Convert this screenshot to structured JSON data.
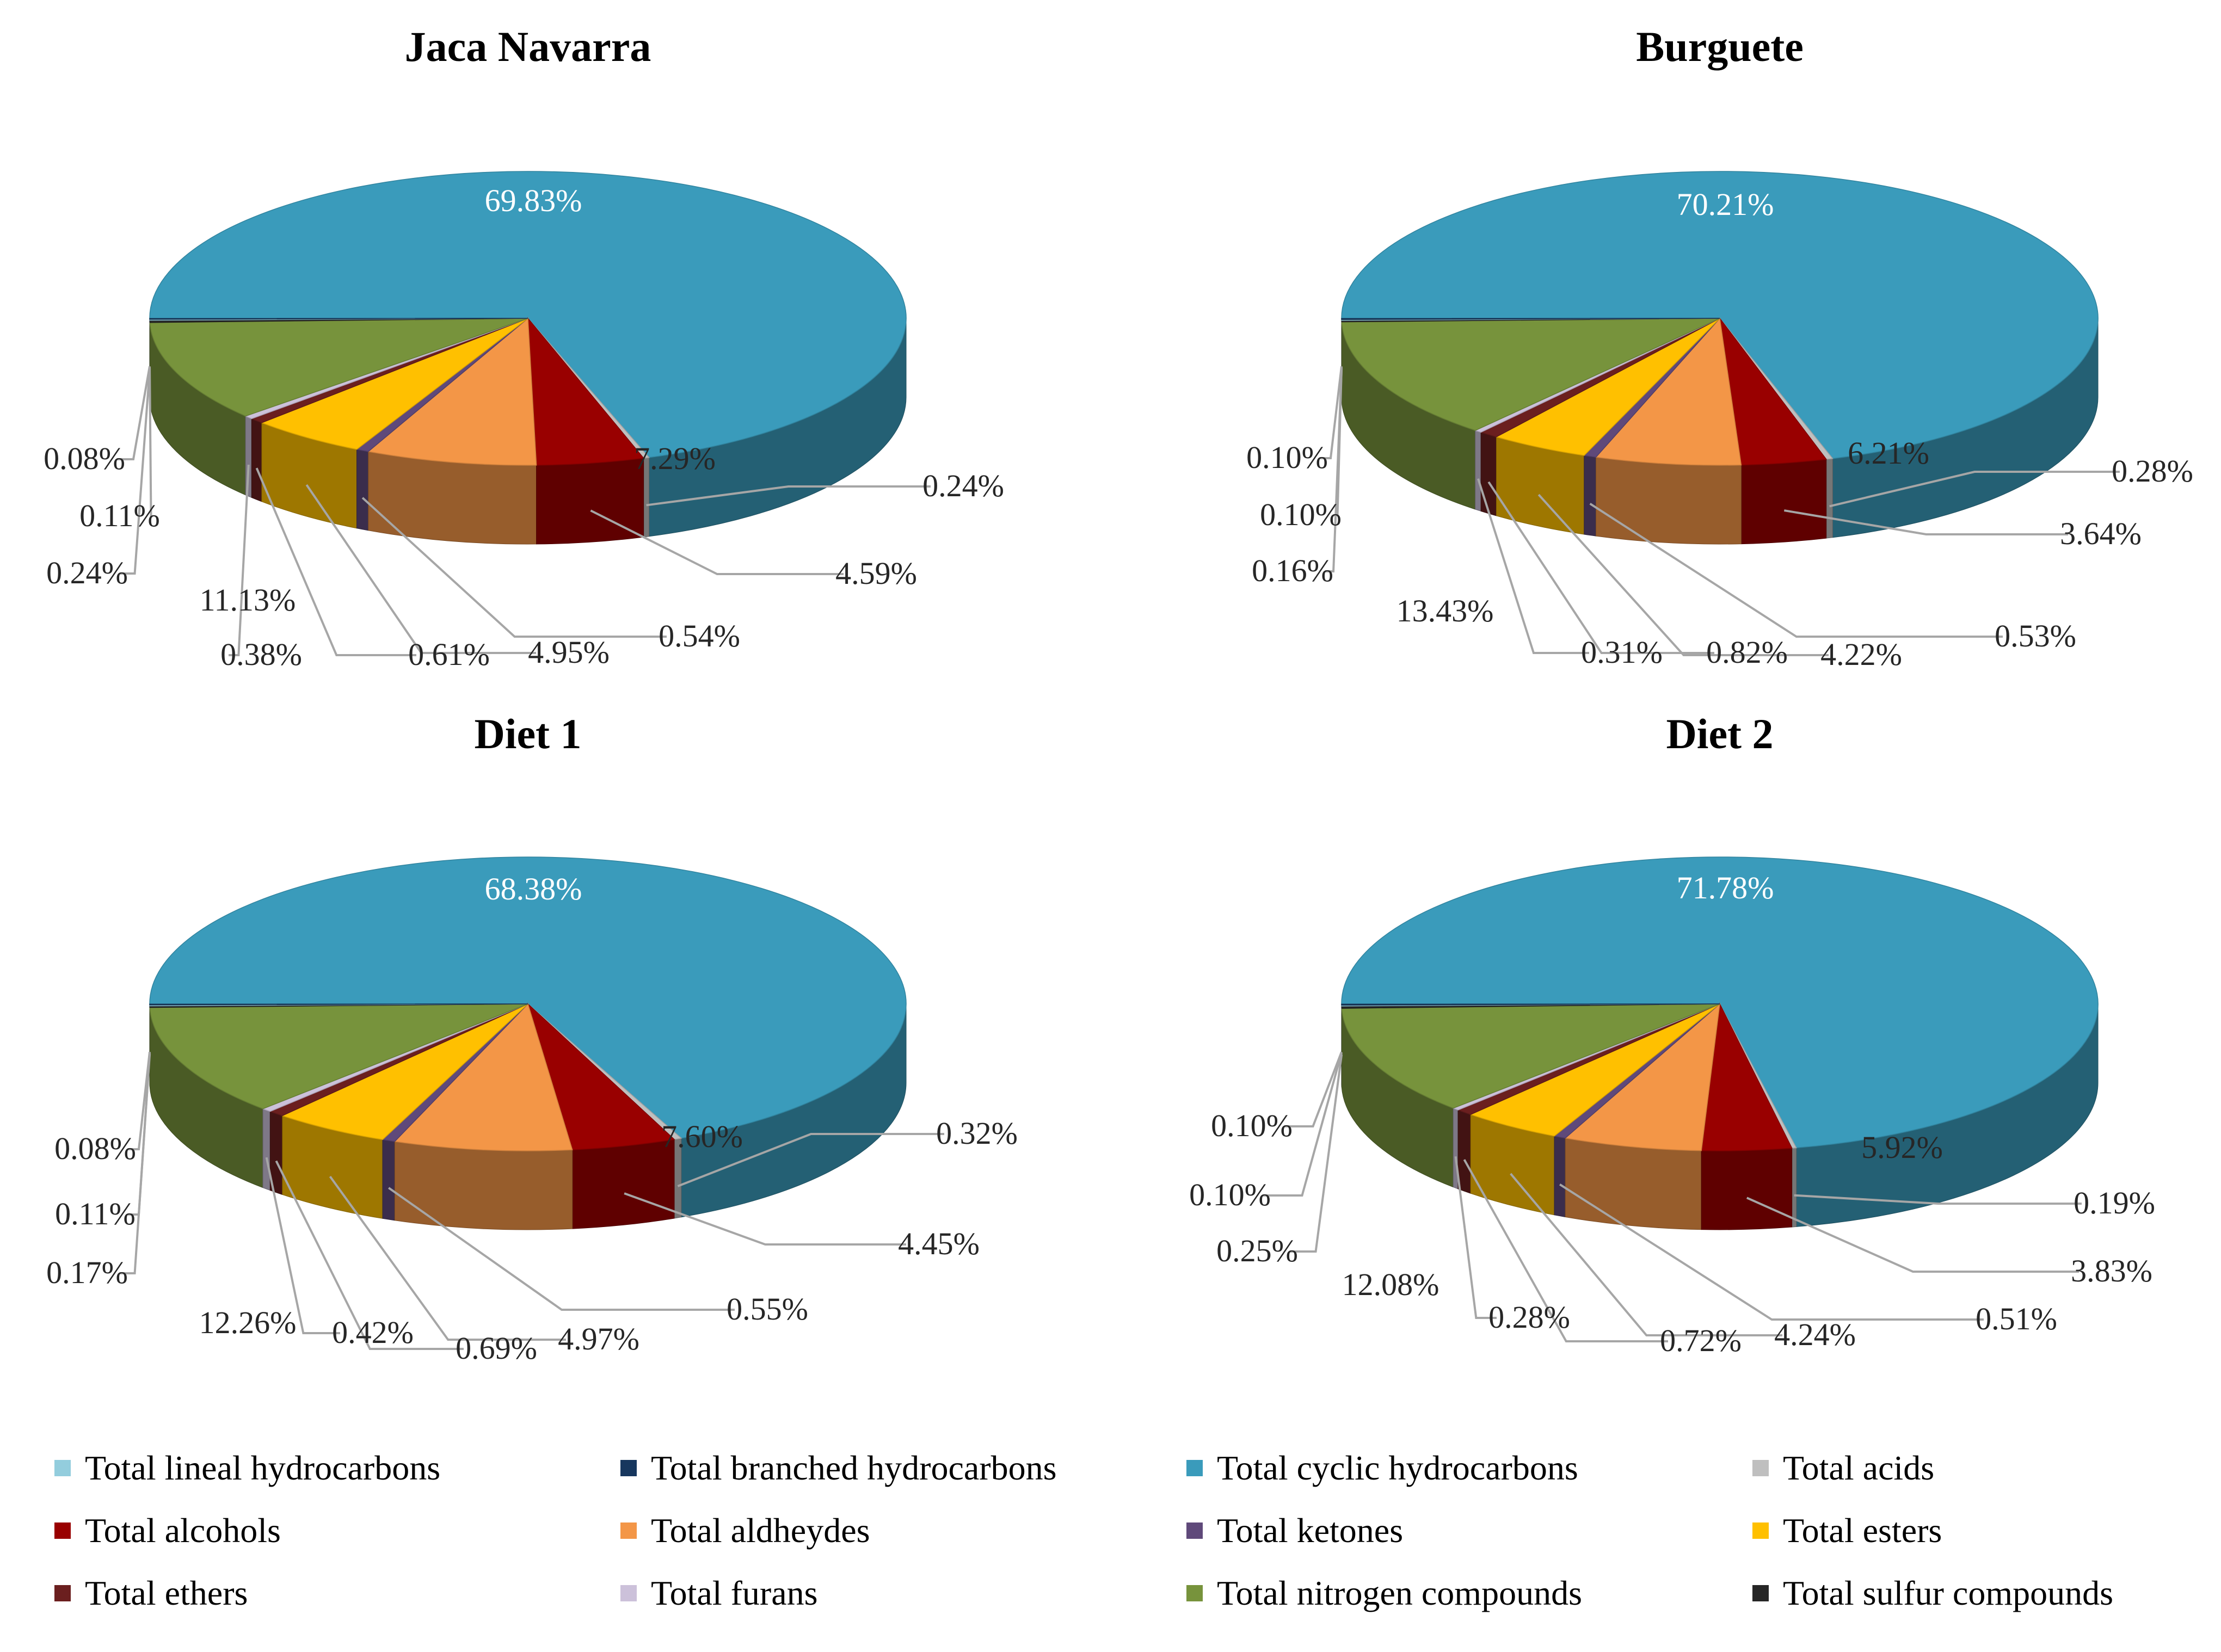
{
  "colors": {
    "Total lineal hydrocarbons": "#93cddd",
    "Total branched hydrocarbons": "#17375e",
    "Total cyclic hydrocarbons": "#3a9bbb",
    "Total acids": "#bfbfbf",
    "Total alcohols": "#990000",
    "Total aldheydes": "#f39647",
    "Total ketones": "#5f497a",
    "Total esters": "#ffc000",
    "Total ethers": "#6b1f1f",
    "Total furans": "#ccc1da",
    "Total nitrogen compounds": "#77933c",
    "Total sulfur compounds": "#262626"
  },
  "chart_data": [
    {
      "type": "pie",
      "title": "Jaca Navarra",
      "slices": [
        {
          "category": "Total cyclic hydrocarbons",
          "value": 69.83,
          "label": "69.83%"
        },
        {
          "category": "Total acids",
          "value": 0.24,
          "label": "0.24%"
        },
        {
          "category": "Total alcohols",
          "value": 4.59,
          "label": "4.59%"
        },
        {
          "category": "Total aldheydes",
          "value": 7.29,
          "label": "7.29%"
        },
        {
          "category": "Total ketones",
          "value": 0.54,
          "label": "0.54%"
        },
        {
          "category": "Total esters",
          "value": 4.95,
          "label": "4.95%"
        },
        {
          "category": "Total ethers",
          "value": 0.61,
          "label": "0.61%"
        },
        {
          "category": "Total furans",
          "value": 0.38,
          "label": "0.38%"
        },
        {
          "category": "Total nitrogen compounds",
          "value": 11.13,
          "label": "11.13%"
        },
        {
          "category": "Total sulfur compounds",
          "value": 0.24,
          "label": "0.24%"
        },
        {
          "category": "Total lineal hydrocarbons",
          "value": 0.11,
          "label": "0.11%"
        },
        {
          "category": "Total branched hydrocarbons",
          "value": 0.08,
          "label": "0.08%"
        }
      ]
    },
    {
      "type": "pie",
      "title": "Burguete",
      "slices": [
        {
          "category": "Total cyclic hydrocarbons",
          "value": 70.21,
          "label": "70.21%"
        },
        {
          "category": "Total acids",
          "value": 0.28,
          "label": "0.28%"
        },
        {
          "category": "Total alcohols",
          "value": 3.64,
          "label": "3.64%"
        },
        {
          "category": "Total aldheydes",
          "value": 6.21,
          "label": "6.21%"
        },
        {
          "category": "Total ketones",
          "value": 0.53,
          "label": "0.53%"
        },
        {
          "category": "Total esters",
          "value": 4.22,
          "label": "4.22%"
        },
        {
          "category": "Total ethers",
          "value": 0.82,
          "label": "0.82%"
        },
        {
          "category": "Total furans",
          "value": 0.31,
          "label": "0.31%"
        },
        {
          "category": "Total nitrogen compounds",
          "value": 13.43,
          "label": "13.43%"
        },
        {
          "category": "Total sulfur compounds",
          "value": 0.16,
          "label": "0.16%"
        },
        {
          "category": "Total lineal hydrocarbons",
          "value": 0.1,
          "label": "0.10%"
        },
        {
          "category": "Total branched hydrocarbons",
          "value": 0.1,
          "label": "0.10%"
        }
      ]
    },
    {
      "type": "pie",
      "title": "Diet 1",
      "slices": [
        {
          "category": "Total cyclic hydrocarbons",
          "value": 68.38,
          "label": "68.38%"
        },
        {
          "category": "Total acids",
          "value": 0.32,
          "label": "0.32%"
        },
        {
          "category": "Total alcohols",
          "value": 4.45,
          "label": "4.45%"
        },
        {
          "category": "Total aldheydes",
          "value": 7.6,
          "label": "7.60%"
        },
        {
          "category": "Total ketones",
          "value": 0.55,
          "label": "0.55%"
        },
        {
          "category": "Total esters",
          "value": 4.97,
          "label": "4.97%"
        },
        {
          "category": "Total ethers",
          "value": 0.69,
          "label": "0.69%"
        },
        {
          "category": "Total furans",
          "value": 0.42,
          "label": "0.42%"
        },
        {
          "category": "Total nitrogen compounds",
          "value": 12.26,
          "label": "12.26%"
        },
        {
          "category": "Total sulfur compounds",
          "value": 0.17,
          "label": "0.17%"
        },
        {
          "category": "Total lineal hydrocarbons",
          "value": 0.11,
          "label": "0.11%"
        },
        {
          "category": "Total branched hydrocarbons",
          "value": 0.08,
          "label": "0.08%"
        }
      ]
    },
    {
      "type": "pie",
      "title": "Diet 2",
      "slices": [
        {
          "category": "Total cyclic hydrocarbons",
          "value": 71.78,
          "label": "71.78%"
        },
        {
          "category": "Total acids",
          "value": 0.19,
          "label": "0.19%"
        },
        {
          "category": "Total alcohols",
          "value": 3.83,
          "label": "3.83%"
        },
        {
          "category": "Total aldheydes",
          "value": 5.92,
          "label": "5.92%"
        },
        {
          "category": "Total ketones",
          "value": 0.51,
          "label": "0.51%"
        },
        {
          "category": "Total esters",
          "value": 4.24,
          "label": "4.24%"
        },
        {
          "category": "Total ethers",
          "value": 0.72,
          "label": "0.72%"
        },
        {
          "category": "Total furans",
          "value": 0.28,
          "label": "0.28%"
        },
        {
          "category": "Total nitrogen compounds",
          "value": 12.08,
          "label": "12.08%"
        },
        {
          "category": "Total sulfur compounds",
          "value": 0.25,
          "label": "0.25%"
        },
        {
          "category": "Total lineal hydrocarbons",
          "value": 0.1,
          "label": "0.10%"
        },
        {
          "category": "Total branched hydrocarbons",
          "value": 0.1,
          "label": "0.10%"
        }
      ]
    }
  ],
  "legend": [
    "Total lineal hydrocarbons",
    "Total branched hydrocarbons",
    "Total cyclic hydrocarbons",
    "Total acids",
    "Total alcohols",
    "Total aldheydes",
    "Total ketones",
    "Total esters",
    "Total ethers",
    "Total furans",
    "Total nitrogen compounds",
    "Total sulfur compounds"
  ]
}
